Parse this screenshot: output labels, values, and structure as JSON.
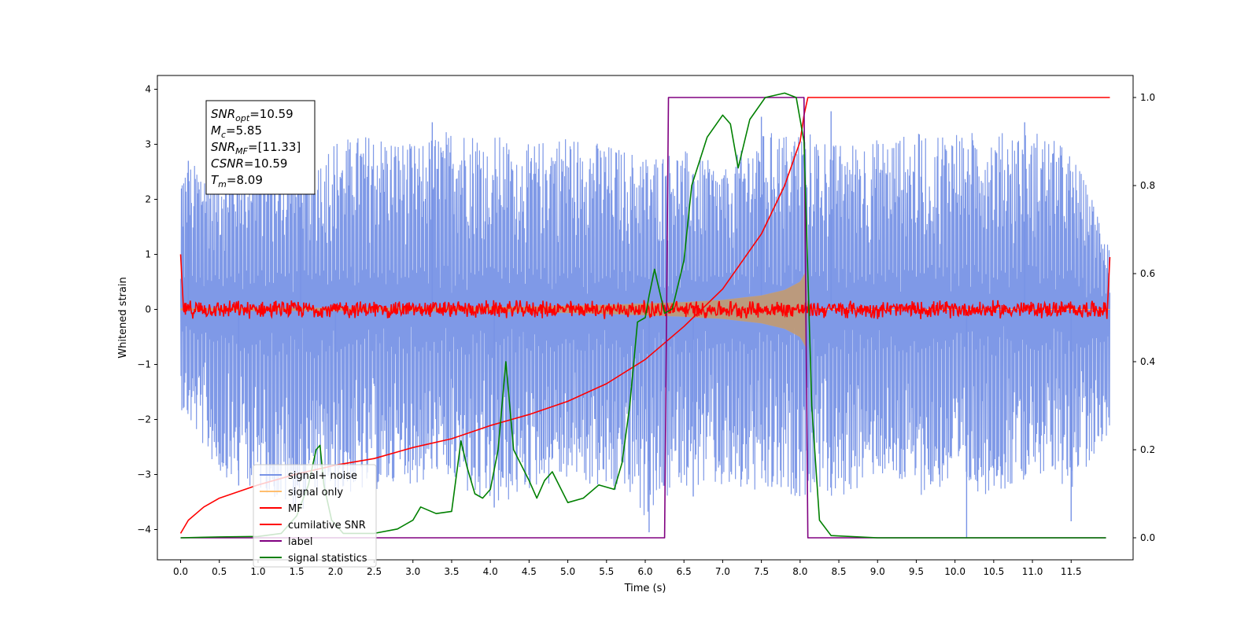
{
  "chart_data": {
    "type": "line",
    "title": "",
    "xlabel": "Time (s)",
    "ylabel": "Whitened strain",
    "xlim": [
      -0.3,
      12.3
    ],
    "ylim": [
      -4.55,
      4.25
    ],
    "y2lim": [
      -0.05,
      1.05
    ],
    "x_ticks": [
      0.0,
      0.5,
      1.0,
      1.5,
      2.0,
      2.5,
      3.0,
      3.5,
      4.0,
      4.5,
      5.0,
      5.5,
      6.0,
      6.5,
      7.0,
      7.5,
      8.0,
      8.5,
      9.0,
      9.5,
      10.0,
      10.5,
      11.0,
      11.5
    ],
    "x_tick_labels": [
      "0.0",
      "0.5",
      "1.0",
      "1.5",
      "2.0",
      "2.5",
      "3.0",
      "3.5",
      "4.0",
      "4.5",
      "5.0",
      "5.5",
      "6.0",
      "6.5",
      "7.0",
      "7.5",
      "8.0",
      "8.5",
      "9.0",
      "9.5",
      "10.0",
      "10.5",
      "11.0",
      "11.5"
    ],
    "y_ticks": [
      -4,
      -3,
      -2,
      -1,
      0,
      1,
      2,
      3,
      4
    ],
    "y_tick_labels": [
      "−4",
      "−3",
      "−2",
      "−1",
      "0",
      "1",
      "2",
      "3",
      "4"
    ],
    "y2_ticks": [
      0.0,
      0.2,
      0.4,
      0.6,
      0.8,
      1.0
    ],
    "y2_tick_labels": [
      "0.0",
      "0.2",
      "0.4",
      "0.6",
      "0.8",
      "1.0"
    ],
    "grid": false,
    "legend_position": "lower-left",
    "info_box": {
      "position": "top-left",
      "lines": [
        {
          "main": "SNR",
          "sub": "opt",
          "rest": "=10.59"
        },
        {
          "main": "M",
          "sub": "c",
          "rest": "=5.85"
        },
        {
          "main": "SNR",
          "sub": "MF",
          "rest": "=[11.33]"
        },
        {
          "main": "CSNR",
          "sub": "",
          "rest": "=10.59"
        },
        {
          "main": "T",
          "sub": "m",
          "rest": "=8.09"
        }
      ]
    },
    "signal_noise": {
      "axis": "left",
      "x_range": [
        0.0,
        12.0
      ],
      "upper_envelope": [
        [
          0.0,
          2.6
        ],
        [
          0.5,
          2.7
        ],
        [
          1.0,
          3.0
        ],
        [
          1.5,
          2.8
        ],
        [
          2.0,
          3.1
        ],
        [
          2.5,
          3.2
        ],
        [
          3.0,
          3.0
        ],
        [
          3.5,
          3.3
        ],
        [
          4.0,
          3.2
        ],
        [
          4.5,
          3.0
        ],
        [
          5.0,
          3.2
        ],
        [
          5.5,
          3.0
        ],
        [
          6.0,
          2.8
        ],
        [
          6.5,
          2.9
        ],
        [
          7.0,
          2.6
        ],
        [
          7.5,
          3.2
        ],
        [
          8.0,
          3.3
        ],
        [
          8.5,
          3.0
        ],
        [
          9.0,
          3.1
        ],
        [
          9.5,
          3.2
        ],
        [
          10.0,
          3.3
        ],
        [
          10.5,
          3.2
        ],
        [
          11.0,
          3.3
        ],
        [
          11.5,
          2.9
        ],
        [
          12.0,
          1.3
        ]
      ],
      "lower_envelope": [
        [
          0.0,
          -1.8
        ],
        [
          0.5,
          -3.0
        ],
        [
          1.0,
          -3.3
        ],
        [
          1.5,
          -3.7
        ],
        [
          2.0,
          -3.4
        ],
        [
          2.5,
          -3.3
        ],
        [
          3.0,
          -3.2
        ],
        [
          3.5,
          -3.2
        ],
        [
          4.0,
          -3.7
        ],
        [
          4.5,
          -3.3
        ],
        [
          5.0,
          -3.1
        ],
        [
          5.5,
          -3.3
        ],
        [
          6.0,
          -3.8
        ],
        [
          6.5,
          -3.2
        ],
        [
          7.0,
          -3.3
        ],
        [
          7.5,
          -3.4
        ],
        [
          8.0,
          -3.4
        ],
        [
          8.5,
          -3.5
        ],
        [
          9.0,
          -3.0
        ],
        [
          9.5,
          -3.4
        ],
        [
          10.0,
          -3.2
        ],
        [
          10.5,
          -3.4
        ],
        [
          11.0,
          -3.0
        ],
        [
          11.5,
          -3.3
        ],
        [
          12.0,
          -2.2
        ]
      ],
      "spikes": [
        [
          0.1,
          2.7
        ],
        [
          0.75,
          -3.2
        ],
        [
          1.55,
          3.6
        ],
        [
          2.0,
          -3.3
        ],
        [
          3.25,
          3.4
        ],
        [
          4.05,
          -3.6
        ],
        [
          6.05,
          -4.05
        ],
        [
          6.62,
          -3.4
        ],
        [
          7.5,
          3.5
        ],
        [
          8.4,
          3.6
        ],
        [
          10.15,
          -4.15
        ],
        [
          10.9,
          3.4
        ],
        [
          11.5,
          -3.85
        ]
      ],
      "color": "#7893e6"
    },
    "signal_only": {
      "axis": "left",
      "amplitude": [
        [
          0.0,
          0.02
        ],
        [
          3.0,
          0.03
        ],
        [
          4.5,
          0.05
        ],
        [
          5.5,
          0.08
        ],
        [
          6.5,
          0.13
        ],
        [
          7.0,
          0.17
        ],
        [
          7.5,
          0.25
        ],
        [
          7.8,
          0.35
        ],
        [
          8.0,
          0.5
        ],
        [
          8.08,
          0.7
        ],
        [
          8.09,
          0.0
        ],
        [
          12.0,
          0.0
        ]
      ],
      "color": "#ffbe6e"
    },
    "mf": {
      "axis": "left",
      "amplitude": 0.18,
      "start": [
        0.0,
        1.0
      ],
      "end": [
        12.0,
        0.95
      ],
      "color": "#ff0000"
    },
    "series": [
      {
        "name": "cumilative SNR",
        "axis": "right",
        "color": "#ff0000",
        "points": [
          [
            0.0,
            0.01
          ],
          [
            0.1,
            0.04
          ],
          [
            0.3,
            0.07
          ],
          [
            0.5,
            0.09
          ],
          [
            1.0,
            0.12
          ],
          [
            1.5,
            0.145
          ],
          [
            2.0,
            0.165
          ],
          [
            2.5,
            0.18
          ],
          [
            3.0,
            0.205
          ],
          [
            3.5,
            0.225
          ],
          [
            4.0,
            0.255
          ],
          [
            4.5,
            0.28
          ],
          [
            5.0,
            0.31
          ],
          [
            5.5,
            0.35
          ],
          [
            6.0,
            0.405
          ],
          [
            6.5,
            0.48
          ],
          [
            7.0,
            0.565
          ],
          [
            7.5,
            0.69
          ],
          [
            7.8,
            0.8
          ],
          [
            8.0,
            0.9
          ],
          [
            8.05,
            0.96
          ],
          [
            8.1,
            1.0
          ],
          [
            12.0,
            1.0
          ]
        ]
      },
      {
        "name": "label",
        "axis": "right",
        "color": "#800080",
        "points": [
          [
            0.0,
            0.0
          ],
          [
            6.25,
            0.0
          ],
          [
            6.3,
            1.0
          ],
          [
            8.05,
            1.0
          ],
          [
            8.1,
            0.0
          ],
          [
            11.95,
            0.0
          ]
        ]
      },
      {
        "name": "signal statistics",
        "axis": "right",
        "color": "#008000",
        "points": [
          [
            0.0,
            0.0
          ],
          [
            0.5,
            0.002
          ],
          [
            1.0,
            0.003
          ],
          [
            1.3,
            0.01
          ],
          [
            1.5,
            0.05
          ],
          [
            1.65,
            0.12
          ],
          [
            1.75,
            0.2
          ],
          [
            1.8,
            0.21
          ],
          [
            1.85,
            0.12
          ],
          [
            1.95,
            0.04
          ],
          [
            2.1,
            0.01
          ],
          [
            2.5,
            0.01
          ],
          [
            2.8,
            0.02
          ],
          [
            3.0,
            0.04
          ],
          [
            3.1,
            0.07
          ],
          [
            3.3,
            0.055
          ],
          [
            3.5,
            0.06
          ],
          [
            3.62,
            0.22
          ],
          [
            3.7,
            0.16
          ],
          [
            3.8,
            0.1
          ],
          [
            3.9,
            0.09
          ],
          [
            4.0,
            0.11
          ],
          [
            4.1,
            0.2
          ],
          [
            4.2,
            0.4
          ],
          [
            4.3,
            0.2
          ],
          [
            4.5,
            0.13
          ],
          [
            4.6,
            0.09
          ],
          [
            4.7,
            0.13
          ],
          [
            4.8,
            0.15
          ],
          [
            5.0,
            0.08
          ],
          [
            5.2,
            0.09
          ],
          [
            5.4,
            0.12
          ],
          [
            5.6,
            0.11
          ],
          [
            5.7,
            0.17
          ],
          [
            5.8,
            0.3
          ],
          [
            5.9,
            0.49
          ],
          [
            6.0,
            0.5
          ],
          [
            6.05,
            0.55
          ],
          [
            6.12,
            0.61
          ],
          [
            6.25,
            0.51
          ],
          [
            6.35,
            0.52
          ],
          [
            6.5,
            0.63
          ],
          [
            6.6,
            0.8
          ],
          [
            6.8,
            0.91
          ],
          [
            7.0,
            0.96
          ],
          [
            7.1,
            0.94
          ],
          [
            7.2,
            0.84
          ],
          [
            7.35,
            0.95
          ],
          [
            7.55,
            1.0
          ],
          [
            7.8,
            1.01
          ],
          [
            7.95,
            1.0
          ],
          [
            8.05,
            0.9
          ],
          [
            8.1,
            0.6
          ],
          [
            8.15,
            0.3
          ],
          [
            8.25,
            0.04
          ],
          [
            8.4,
            0.005
          ],
          [
            9.0,
            0.0
          ],
          [
            11.95,
            0.0
          ]
        ]
      }
    ],
    "legend": [
      {
        "name": "signal+ noise",
        "color": "#7893e6"
      },
      {
        "name": "signal only",
        "color": "#ffbe6e"
      },
      {
        "name": "MF",
        "color": "#ff0000"
      },
      {
        "name": "cumilative SNR",
        "color": "#ff0000"
      },
      {
        "name": "label",
        "color": "#800080"
      },
      {
        "name": "signal statistics",
        "color": "#008000"
      }
    ]
  }
}
